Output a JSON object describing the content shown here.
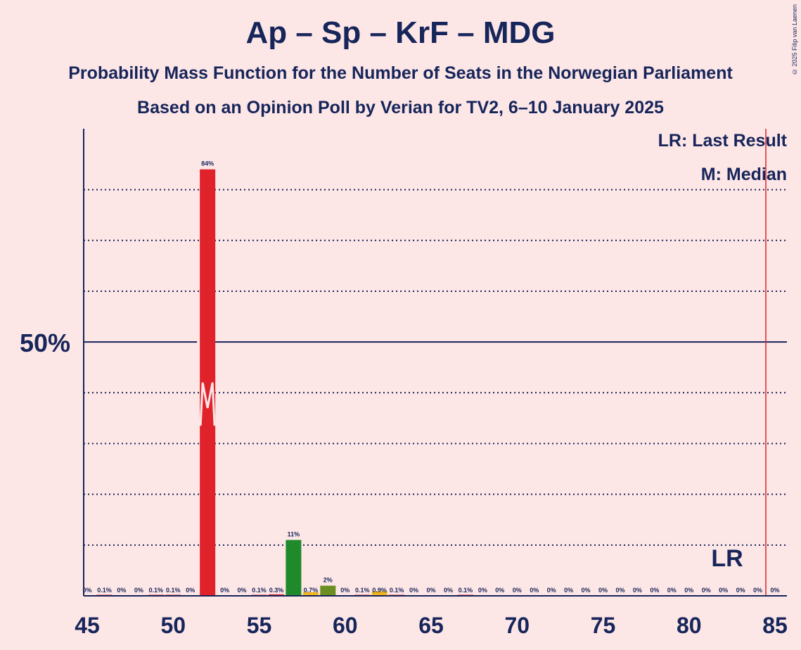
{
  "title": "Ap – Sp – KrF – MDG",
  "subtitle_1": "Probability Mass Function for the Number of Seats in the Norwegian Parliament",
  "subtitle_2": "Based on an Opinion Poll by Verian for TV2, 6–10 January 2025",
  "copyright": "© 2025 Filip van Laenen",
  "legend": {
    "last_result": "LR: Last Result",
    "median": "M: Median"
  },
  "colors": {
    "background": "#fde6e6",
    "axis": "#16255a",
    "median_bar": "#e0222a",
    "last_result_line": "#e0222a",
    "green": "#1f8a2a",
    "olive": "#6b8e23",
    "gold": "#f2b51c"
  },
  "chart_data": {
    "type": "bar",
    "x": [
      45,
      46,
      47,
      48,
      49,
      50,
      51,
      52,
      53,
      54,
      55,
      56,
      57,
      58,
      59,
      60,
      61,
      62,
      63,
      64,
      65,
      66,
      67,
      68,
      69,
      70,
      71,
      72,
      73,
      74,
      75,
      76,
      77,
      78,
      79,
      80,
      81,
      82,
      83,
      84,
      85
    ],
    "values": [
      0,
      0.1,
      0,
      0,
      0.1,
      0.1,
      0,
      84,
      0,
      0,
      0.1,
      0.3,
      11,
      0.7,
      2,
      0,
      0.1,
      0.9,
      0.1,
      0,
      0,
      0,
      0.1,
      0,
      0,
      0,
      0,
      0,
      0,
      0,
      0,
      0,
      0,
      0,
      0,
      0,
      0,
      0,
      0,
      0,
      0
    ],
    "labels": [
      "0%",
      "0.1%",
      "0%",
      "0%",
      "0.1%",
      "0.1%",
      "0%",
      "84%",
      "0%",
      "0%",
      "0.1%",
      "0.3%",
      "11%",
      "0.7%",
      "2%",
      "0%",
      "0.1%",
      "0.9%",
      "0.1%",
      "0%",
      "0%",
      "0%",
      "0.1%",
      "0%",
      "0%",
      "0%",
      "0%",
      "0%",
      "0%",
      "0%",
      "0%",
      "0%",
      "0%",
      "0%",
      "0%",
      "0%",
      "0%",
      "0%",
      "0%",
      "0%",
      "0%"
    ],
    "bar_colors": {
      "52": "#e0222a",
      "56": "#e0222a",
      "57": "#1f8a2a",
      "58": "#f2b51c",
      "59": "#6b8e23",
      "62": "#f2b51c"
    },
    "xticks": [
      45,
      50,
      55,
      60,
      65,
      70,
      75,
      80,
      85
    ],
    "xtick_labels": [
      "45",
      "50",
      "55",
      "60",
      "65",
      "70",
      "75",
      "80",
      "85"
    ],
    "ylim": [
      0,
      92
    ],
    "y_gridlines": [
      10,
      20,
      30,
      40,
      60,
      70,
      80
    ],
    "y_major": 50,
    "y_major_label": "50%",
    "median": 52,
    "median_marker": "M",
    "last_result": 85,
    "last_result_marker": "LR"
  }
}
